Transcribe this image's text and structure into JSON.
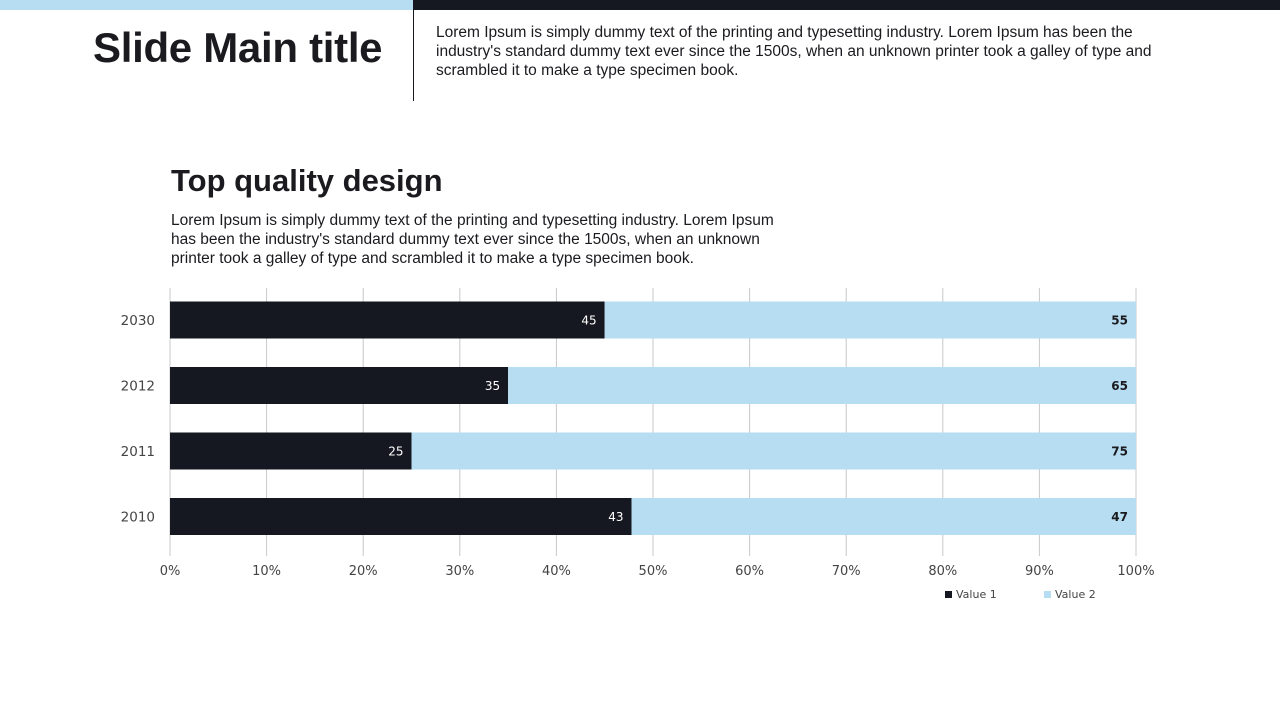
{
  "header": {
    "title": "Slide Main title",
    "intro": "Lorem Ipsum is simply dummy text of the printing and typesetting industry. Lorem Ipsum has been the industry's standard dummy text ever since the 1500s, when an unknown printer took a galley of type and scrambled it to make a type specimen book."
  },
  "section": {
    "title": "Top quality design",
    "body": "Lorem Ipsum is simply dummy text of the printing and typesetting industry. Lorem Ipsum has been the industry's standard dummy text ever since the 1500s, when an unknown printer took a galley of type and scrambled it to make a type specimen book."
  },
  "colors": {
    "accent_dark": "#151820",
    "accent_light": "#b6ddf1"
  },
  "chart_data": {
    "type": "bar",
    "orientation": "horizontal",
    "stacked": "percent",
    "categories": [
      "2030",
      "2012",
      "2011",
      "2010"
    ],
    "series": [
      {
        "name": "Value  1",
        "values": [
          45,
          35,
          25,
          43
        ],
        "color": "#151820"
      },
      {
        "name": "Value  2",
        "values": [
          55,
          65,
          75,
          47
        ],
        "color": "#b6ddf1"
      }
    ],
    "xlim": [
      0,
      100
    ],
    "x_ticks": [
      "0%",
      "10%",
      "20%",
      "30%",
      "40%",
      "50%",
      "60%",
      "70%",
      "80%",
      "90%",
      "100%"
    ],
    "grid": true,
    "legend_position": "bottom-right"
  }
}
